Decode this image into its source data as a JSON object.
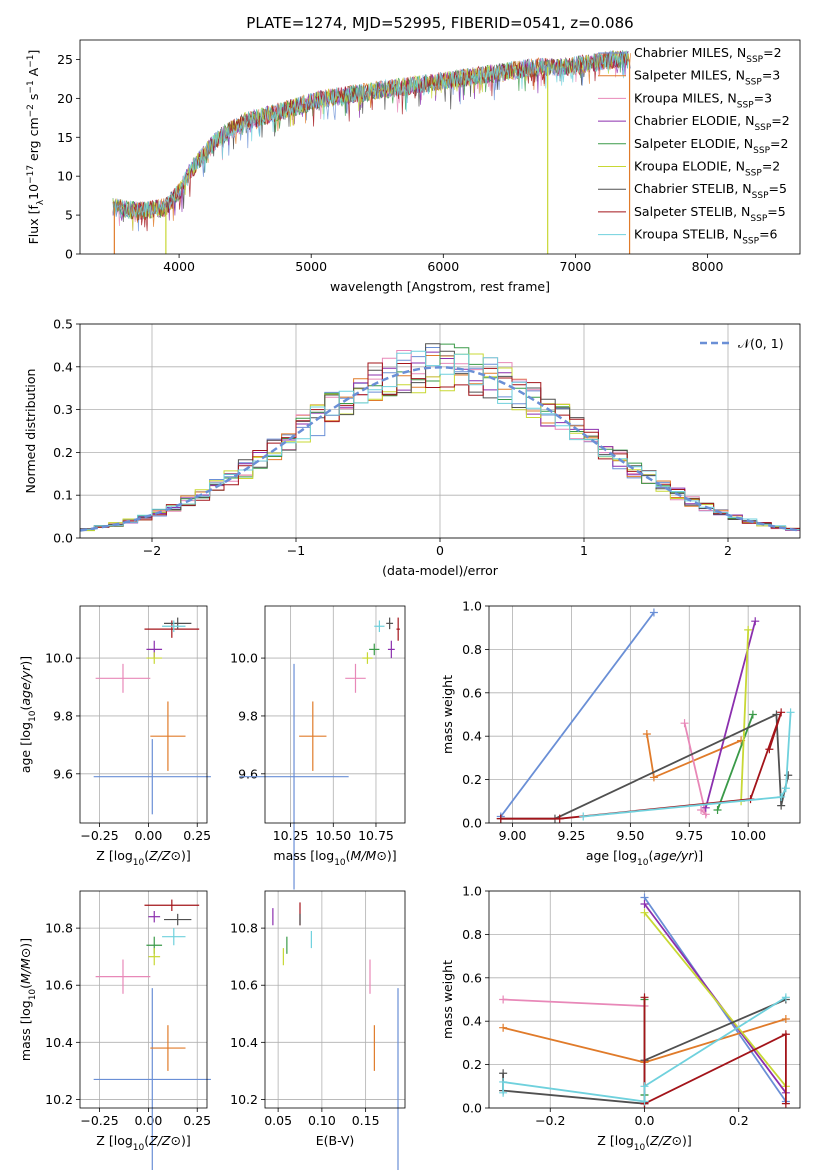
{
  "title": "PLATE=1274, MJD=52995, FIBERID=0541, z=0.086",
  "colors": [
    "#6a8fd6",
    "#e07b2a",
    "#e888b8",
    "#8b2fae",
    "#3a9a48",
    "#c8d834",
    "#505050",
    "#a3141a",
    "#6fd1dd"
  ],
  "chart_data": [
    {
      "type": "line",
      "name": "spectrum",
      "xlabel": "wavelength [Angstrom, rest frame]",
      "ylabel": "Flux [f_λ10^-17 erg cm^-2 s^-1 A^-1]",
      "xlim": [
        3250,
        8700
      ],
      "ylim": [
        0,
        27.5
      ],
      "xticks": [
        4000,
        5000,
        6000,
        7000,
        8000
      ],
      "yticks": [
        0,
        5,
        10,
        15,
        20,
        25
      ],
      "legend_placement": "right",
      "legend": [
        {
          "text": "Chabrier MILES, N",
          "sub": "SSP",
          "tail": "=2"
        },
        {
          "text": "Salpeter MILES, N",
          "sub": "SSP",
          "tail": "=3"
        },
        {
          "text": "Kroupa MILES, N",
          "sub": "SSP",
          "tail": "=3"
        },
        {
          "text": "Chabrier ELODIE, N",
          "sub": "SSP",
          "tail": "=2"
        },
        {
          "text": "Salpeter ELODIE, N",
          "sub": "SSP",
          "tail": "=2"
        },
        {
          "text": "Kroupa ELODIE, N",
          "sub": "SSP",
          "tail": "=2"
        },
        {
          "text": "Chabrier STELIB, N",
          "sub": "SSP",
          "tail": "=5"
        },
        {
          "text": "Salpeter STELIB, N",
          "sub": "SSP",
          "tail": "=5"
        },
        {
          "text": "Kroupa STELIB, N",
          "sub": "SSP",
          "tail": "=6"
        }
      ],
      "x": [
        3500,
        3700,
        3900,
        4000,
        4100,
        4200,
        4300,
        4400,
        4500,
        4700,
        4900,
        5100,
        5300,
        5500,
        5700,
        5900,
        6100,
        6300,
        6500,
        6700,
        6900,
        7100,
        7300,
        7400
      ],
      "y": [
        6,
        5.5,
        6,
        8,
        11,
        13,
        15,
        16,
        17,
        18,
        19,
        20,
        20.5,
        21,
        21.5,
        22,
        22.5,
        23,
        23.5,
        24,
        24,
        24.5,
        25,
        25
      ],
      "spikes": [
        {
          "x": 3510,
          "to": 0
        },
        {
          "x": 3900,
          "to": 0
        },
        {
          "x": 6790,
          "to": 0
        },
        {
          "x": 7410,
          "to": 0
        }
      ]
    },
    {
      "type": "bar",
      "name": "residuals",
      "xlabel": "(data-model)/error",
      "ylabel": "Normed distribution",
      "xlim": [
        -2.5,
        2.5
      ],
      "ylim": [
        0,
        0.5
      ],
      "xticks": [
        -2,
        -1,
        0,
        1,
        2
      ],
      "yticks": [
        0,
        0.1,
        0.2,
        0.3,
        0.4,
        0.5
      ],
      "legend": "𝒩(0, 1)",
      "legend_placement": "top-right",
      "gaussian": {
        "mean": 0,
        "sigma": 1
      }
    },
    {
      "type": "scatter",
      "name": "age-vs-Z",
      "xlabel": "Z [log10(Z/Z⊙)]",
      "ylabel": "age [log10(age/yr)]",
      "xlim": [
        -0.35,
        0.3
      ],
      "ylim": [
        9.43,
        10.18
      ],
      "xticks": [
        -0.25,
        0,
        0.25
      ],
      "yticks": [
        9.6,
        9.8,
        10.0
      ],
      "points": [
        {
          "x": 0.02,
          "y": 9.59,
          "xerr": 0.3,
          "yerr": 0.13,
          "c": 0
        },
        {
          "x": 0.1,
          "y": 9.73,
          "xerr": 0.09,
          "yerr": 0.12,
          "c": 1
        },
        {
          "x": -0.13,
          "y": 9.93,
          "xerr": 0.14,
          "yerr": 0.05,
          "c": 2
        },
        {
          "x": 0.03,
          "y": 10.03,
          "xerr": 0.04,
          "yerr": 0.03,
          "c": 3
        },
        {
          "x": 0.03,
          "y": 10.0,
          "xerr": 0.04,
          "yerr": 0.02,
          "c": 5
        },
        {
          "x": 0.12,
          "y": 10.1,
          "xerr": 0.14,
          "yerr": 0.03,
          "c": 7
        },
        {
          "x": 0.15,
          "y": 10.12,
          "xerr": 0.07,
          "yerr": 0.02,
          "c": 6
        },
        {
          "x": 0.13,
          "y": 10.11,
          "xerr": 0.06,
          "yerr": 0.02,
          "c": 8
        }
      ]
    },
    {
      "type": "scatter",
      "name": "age-vs-mass",
      "xlabel": "mass [log10(M/M⊙)]",
      "ylabel": "",
      "xlim": [
        10.1,
        10.92
      ],
      "ylim": [
        9.43,
        10.18
      ],
      "xticks": [
        10.25,
        10.5,
        10.75
      ],
      "yticks": [
        9.6,
        9.8,
        10.0
      ],
      "points": [
        {
          "x": 10.27,
          "y": 9.59,
          "xerr": 0.32,
          "yerr": 0.39,
          "c": 0
        },
        {
          "x": 10.38,
          "y": 9.73,
          "xerr": 0.08,
          "yerr": 0.12,
          "c": 1
        },
        {
          "x": 10.63,
          "y": 9.93,
          "xerr": 0.06,
          "yerr": 0.05,
          "c": 2
        },
        {
          "x": 10.84,
          "y": 10.03,
          "xerr": 0.02,
          "yerr": 0.03,
          "c": 3
        },
        {
          "x": 10.74,
          "y": 10.03,
          "xerr": 0.03,
          "yerr": 0.02,
          "c": 4
        },
        {
          "x": 10.7,
          "y": 10.0,
          "xerr": 0.03,
          "yerr": 0.02,
          "c": 5
        },
        {
          "x": 10.88,
          "y": 10.1,
          "xerr": 0.01,
          "yerr": 0.04,
          "c": 7
        },
        {
          "x": 10.83,
          "y": 10.12,
          "xerr": 0.02,
          "yerr": 0.02,
          "c": 6
        },
        {
          "x": 10.77,
          "y": 10.11,
          "xerr": 0.03,
          "yerr": 0.02,
          "c": 8
        }
      ]
    },
    {
      "type": "line",
      "name": "mass-weight-vs-age",
      "xlabel": "age [log10(age/yr)]",
      "ylabel": "mass weight",
      "xlim": [
        8.9,
        10.22
      ],
      "ylim": [
        0,
        1
      ],
      "xticks": [
        9.0,
        9.25,
        9.5,
        9.75,
        10.0
      ],
      "yticks": [
        0,
        0.2,
        0.4,
        0.6,
        0.8,
        1.0
      ],
      "series": [
        {
          "c": 0,
          "x": [
            8.95,
            9.6
          ],
          "y": [
            0.03,
            0.97
          ]
        },
        {
          "c": 1,
          "x": [
            9.57,
            9.6,
            9.97
          ],
          "y": [
            0.41,
            0.21,
            0.38
          ]
        },
        {
          "c": 2,
          "x": [
            9.8,
            9.82,
            9.73
          ],
          "y": [
            0.06,
            0.04,
            0.46
          ]
        },
        {
          "c": 3,
          "x": [
            9.82,
            10.03
          ],
          "y": [
            0.07,
            0.93
          ]
        },
        {
          "c": 4,
          "x": [
            9.87,
            10.02
          ],
          "y": [
            0.06,
            0.5
          ]
        },
        {
          "c": 5,
          "x": [
            9.97,
            10.0
          ],
          "y": [
            0.1,
            0.89
          ]
        },
        {
          "c": 6,
          "x": [
            8.95,
            9.18,
            10.12,
            10.14,
            10.17
          ],
          "y": [
            0.02,
            0.02,
            0.5,
            0.08,
            0.22
          ]
        },
        {
          "c": 7,
          "x": [
            8.95,
            9.2,
            10.01,
            10.14,
            10.09
          ],
          "y": [
            0.02,
            0.02,
            0.11,
            0.51,
            0.34
          ]
        },
        {
          "c": 8,
          "x": [
            9.3,
            10.14,
            10.16,
            10.18
          ],
          "y": [
            0.03,
            0.12,
            0.16,
            0.51
          ]
        }
      ]
    },
    {
      "type": "scatter",
      "name": "mass-vs-Z",
      "xlabel": "Z [log10(Z/Z⊙)]",
      "ylabel": "mass [log10(M/M⊙)]",
      "xlim": [
        -0.35,
        0.3
      ],
      "ylim": [
        10.17,
        10.93
      ],
      "xticks": [
        -0.25,
        0,
        0.25
      ],
      "yticks": [
        10.2,
        10.4,
        10.6,
        10.8
      ],
      "points": [
        {
          "x": 0.02,
          "y": 10.27,
          "xerr": 0.3,
          "yerr": 0.32,
          "c": 0
        },
        {
          "x": 0.1,
          "y": 10.38,
          "xerr": 0.09,
          "yerr": 0.08,
          "c": 1
        },
        {
          "x": -0.13,
          "y": 10.63,
          "xerr": 0.14,
          "yerr": 0.06,
          "c": 2
        },
        {
          "x": 0.03,
          "y": 10.84,
          "xerr": 0.03,
          "yerr": 0.02,
          "c": 3
        },
        {
          "x": 0.03,
          "y": 10.74,
          "xerr": 0.04,
          "yerr": 0.03,
          "c": 4
        },
        {
          "x": 0.03,
          "y": 10.7,
          "xerr": 0.03,
          "yerr": 0.03,
          "c": 5
        },
        {
          "x": 0.12,
          "y": 10.88,
          "xerr": 0.14,
          "yerr": 0.02,
          "c": 7
        },
        {
          "x": 0.15,
          "y": 10.83,
          "xerr": 0.07,
          "yerr": 0.02,
          "c": 6
        },
        {
          "x": 0.13,
          "y": 10.77,
          "xerr": 0.06,
          "yerr": 0.03,
          "c": 8
        }
      ]
    },
    {
      "type": "scatter",
      "name": "mass-vs-EBV",
      "xlabel": "E(B-V)",
      "ylabel": "",
      "xlim": [
        0.035,
        0.195
      ],
      "ylim": [
        10.17,
        10.93
      ],
      "xticks": [
        0.05,
        0.1,
        0.15
      ],
      "yticks": [
        10.2,
        10.4,
        10.6,
        10.8
      ],
      "points": [
        {
          "x": 0.187,
          "y": 10.27,
          "xerr": 0,
          "yerr": 0.32,
          "c": 0
        },
        {
          "x": 0.16,
          "y": 10.38,
          "xerr": 0,
          "yerr": 0.08,
          "c": 1
        },
        {
          "x": 0.155,
          "y": 10.63,
          "xerr": 0,
          "yerr": 0.06,
          "c": 2
        },
        {
          "x": 0.044,
          "y": 10.84,
          "xerr": 0,
          "yerr": 0.03,
          "c": 3
        },
        {
          "x": 0.06,
          "y": 10.74,
          "xerr": 0,
          "yerr": 0.03,
          "c": 4
        },
        {
          "x": 0.056,
          "y": 10.7,
          "xerr": 0,
          "yerr": 0.03,
          "c": 5
        },
        {
          "x": 0.075,
          "y": 10.85,
          "xerr": 0,
          "yerr": 0.04,
          "c": 7
        },
        {
          "x": 0.075,
          "y": 10.83,
          "xerr": 0,
          "yerr": 0.02,
          "c": 6
        },
        {
          "x": 0.088,
          "y": 10.76,
          "xerr": 0,
          "yerr": 0.03,
          "c": 8
        }
      ]
    },
    {
      "type": "line",
      "name": "mass-weight-vs-Z",
      "xlabel": "Z [log10(Z/Z⊙)]",
      "ylabel": "mass weight",
      "xlim": [
        -0.33,
        0.33
      ],
      "ylim": [
        0,
        1
      ],
      "xticks": [
        -0.2,
        0.0,
        0.2
      ],
      "yticks": [
        0,
        0.2,
        0.4,
        0.6,
        0.8,
        1.0
      ],
      "series": [
        {
          "c": 0,
          "x": [
            0,
            0.3
          ],
          "y": [
            0.97,
            0.03
          ]
        },
        {
          "c": 1,
          "x": [
            -0.3,
            0,
            0.3
          ],
          "y": [
            0.37,
            0.21,
            0.41
          ]
        },
        {
          "c": 2,
          "x": [
            -0.3,
            0
          ],
          "y": [
            0.5,
            0.47
          ]
        },
        {
          "c": 3,
          "x": [
            0,
            0.3
          ],
          "y": [
            0.94,
            0.07
          ]
        },
        {
          "c": 4,
          "x": [
            0,
            0,
            0
          ],
          "y": [
            0.5,
            0.06,
            0.06
          ]
        },
        {
          "c": 5,
          "x": [
            0,
            0.3
          ],
          "y": [
            0.9,
            0.1
          ]
        },
        {
          "c": 6,
          "x": [
            -0.3,
            -0.3,
            0,
            0,
            0.3
          ],
          "y": [
            0.16,
            0.08,
            0.02,
            0.22,
            0.5
          ]
        },
        {
          "c": 7,
          "x": [
            0,
            0,
            0.3,
            0.3
          ],
          "y": [
            0.51,
            0.02,
            0.34,
            0.02
          ]
        },
        {
          "c": 8,
          "x": [
            -0.3,
            -0.3,
            0,
            0,
            0.3
          ],
          "y": [
            0.07,
            0.12,
            0.03,
            0.1,
            0.51
          ]
        }
      ]
    }
  ]
}
